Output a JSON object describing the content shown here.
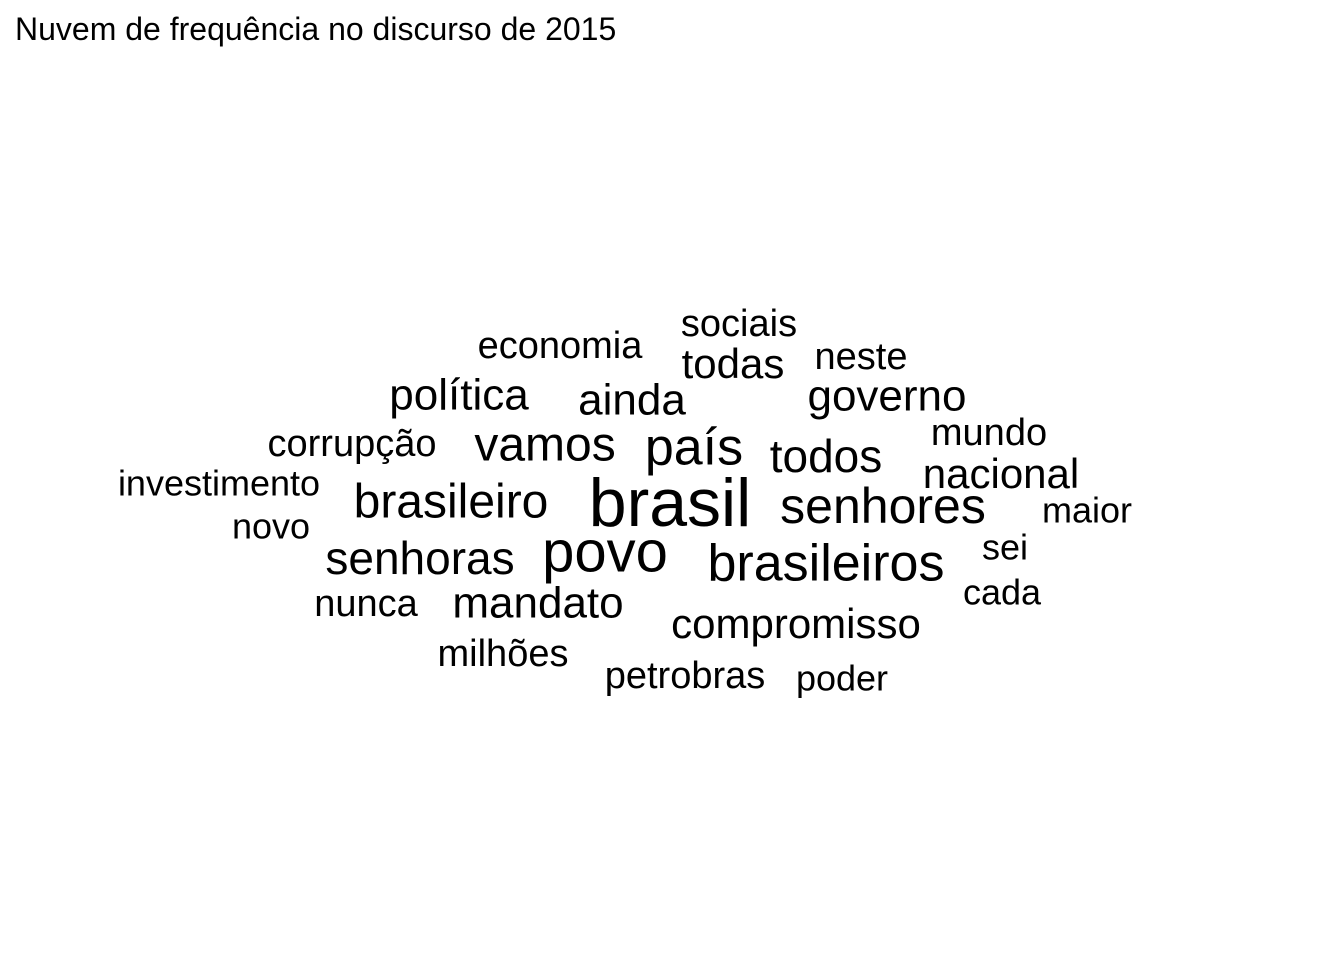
{
  "chart_data": {
    "type": "wordcloud",
    "title": "Nuvem de frequência no discurso de 2015",
    "words": [
      {
        "text": "brasil",
        "weight": 10
      },
      {
        "text": "povo",
        "weight": 9
      },
      {
        "text": "brasileiros",
        "weight": 8
      },
      {
        "text": "país",
        "weight": 7
      },
      {
        "text": "senhores",
        "weight": 7
      },
      {
        "text": "brasileiro",
        "weight": 7
      },
      {
        "text": "vamos",
        "weight": 7
      },
      {
        "text": "senhoras",
        "weight": 6
      },
      {
        "text": "todos",
        "weight": 6
      },
      {
        "text": "mandato",
        "weight": 6
      },
      {
        "text": "política",
        "weight": 5
      },
      {
        "text": "ainda",
        "weight": 5
      },
      {
        "text": "governo",
        "weight": 5
      },
      {
        "text": "nacional",
        "weight": 5
      },
      {
        "text": "compromisso",
        "weight": 5
      },
      {
        "text": "todas",
        "weight": 5
      },
      {
        "text": "corrupção",
        "weight": 4
      },
      {
        "text": "sociais",
        "weight": 4
      },
      {
        "text": "economia",
        "weight": 4
      },
      {
        "text": "neste",
        "weight": 4
      },
      {
        "text": "mundo",
        "weight": 4
      },
      {
        "text": "nunca",
        "weight": 4
      },
      {
        "text": "milhões",
        "weight": 4
      },
      {
        "text": "petrobras",
        "weight": 4
      },
      {
        "text": "investimento",
        "weight": 3
      },
      {
        "text": "sei",
        "weight": 3
      },
      {
        "text": "maior",
        "weight": 3
      },
      {
        "text": "cada",
        "weight": 3
      },
      {
        "text": "poder",
        "weight": 3
      },
      {
        "text": "novo",
        "weight": 3
      }
    ]
  }
}
